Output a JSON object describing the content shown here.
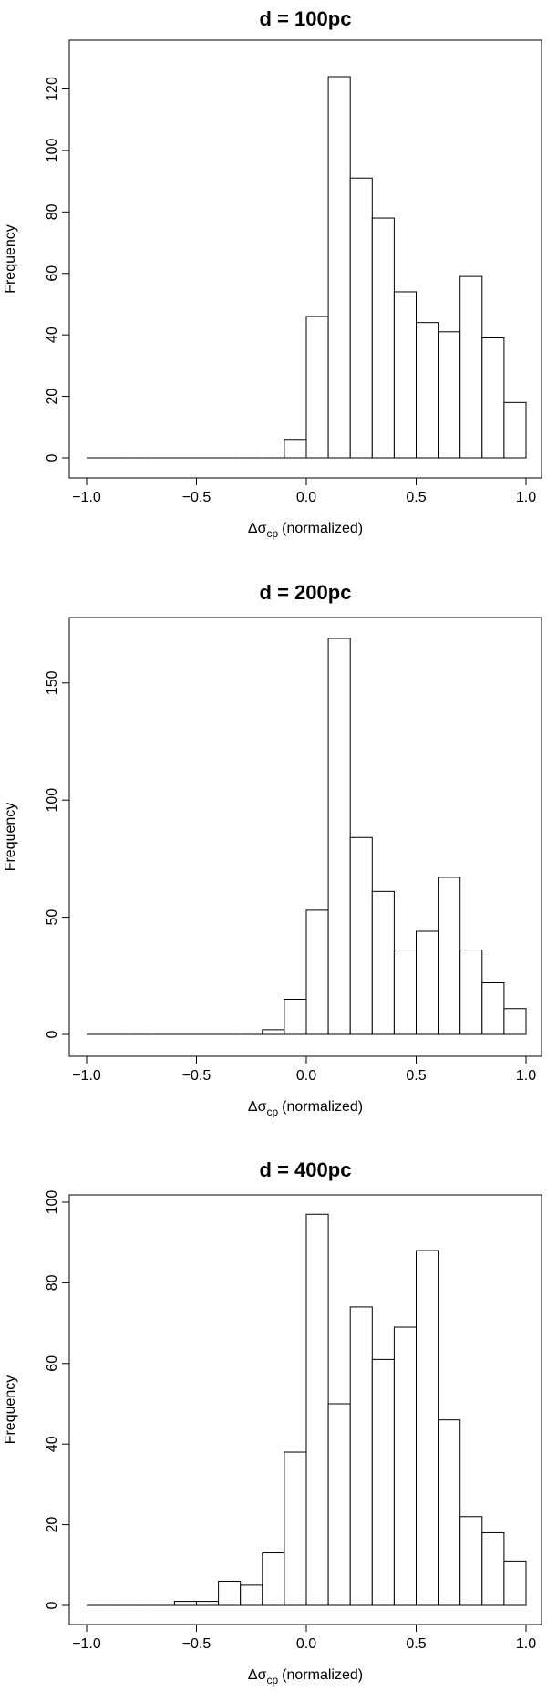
{
  "chart_data": [
    {
      "type": "bar",
      "title": "d = 100pc",
      "xlabel_symbol": "Δσ",
      "xlabel_subscript": "cp",
      "xlabel_suffix": "(normalized)",
      "ylabel": "Frequency",
      "bin_start": -1.0,
      "bin_width": 0.1,
      "values": [
        0,
        0,
        0,
        0,
        0,
        0,
        0,
        0,
        0,
        6,
        46,
        124,
        91,
        78,
        54,
        44,
        41,
        59,
        39,
        18
      ],
      "xlim": [
        -1.0,
        1.0
      ],
      "ylim": [
        0,
        124
      ],
      "x_ticks": [
        -1.0,
        -0.5,
        0.0,
        0.5,
        1.0
      ],
      "x_tick_labels": [
        "−1.0",
        "−0.5",
        "0.0",
        "0.5",
        "1.0"
      ],
      "y_ticks": [
        0,
        20,
        40,
        60,
        80,
        100,
        120
      ],
      "y_tick_labels": [
        "0",
        "20",
        "40",
        "60",
        "80",
        "100",
        "120"
      ],
      "grid": false,
      "colors": {
        "bar_fill": "#ffffff",
        "bar_stroke": "#000000"
      }
    },
    {
      "type": "bar",
      "title": "d = 200pc",
      "xlabel_symbol": "Δσ",
      "xlabel_subscript": "cp",
      "xlabel_suffix": "(normalized)",
      "ylabel": "Frequency",
      "bin_start": -1.0,
      "bin_width": 0.1,
      "values": [
        0,
        0,
        0,
        0,
        0,
        0,
        0,
        0,
        2,
        15,
        53,
        169,
        84,
        61,
        36,
        44,
        67,
        36,
        22,
        11
      ],
      "xlim": [
        -1.0,
        1.0
      ],
      "ylim": [
        0,
        169
      ],
      "x_ticks": [
        -1.0,
        -0.5,
        0.0,
        0.5,
        1.0
      ],
      "x_tick_labels": [
        "−1.0",
        "−0.5",
        "0.0",
        "0.5",
        "1.0"
      ],
      "y_ticks": [
        0,
        50,
        100,
        150
      ],
      "y_tick_labels": [
        "0",
        "50",
        "100",
        "150"
      ],
      "grid": false,
      "colors": {
        "bar_fill": "#ffffff",
        "bar_stroke": "#000000"
      }
    },
    {
      "type": "bar",
      "title": "d = 400pc",
      "xlabel_symbol": "Δσ",
      "xlabel_subscript": "cp",
      "xlabel_suffix": "(normalized)",
      "ylabel": "Frequency",
      "bin_start": -1.0,
      "bin_width": 0.1,
      "values": [
        0,
        0,
        0,
        0,
        1,
        1,
        6,
        5,
        13,
        38,
        97,
        50,
        74,
        61,
        69,
        88,
        46,
        22,
        18,
        11
      ],
      "xlim": [
        -1.0,
        1.0
      ],
      "ylim": [
        0,
        100
      ],
      "x_ticks": [
        -1.0,
        -0.5,
        0.0,
        0.5,
        1.0
      ],
      "x_tick_labels": [
        "−1.0",
        "−0.5",
        "0.0",
        "0.5",
        "1.0"
      ],
      "y_ticks": [
        0,
        20,
        40,
        60,
        80,
        100
      ],
      "y_tick_labels": [
        "0",
        "20",
        "40",
        "60",
        "80",
        "100"
      ],
      "grid": false,
      "colors": {
        "bar_fill": "#ffffff",
        "bar_stroke": "#000000"
      }
    }
  ]
}
